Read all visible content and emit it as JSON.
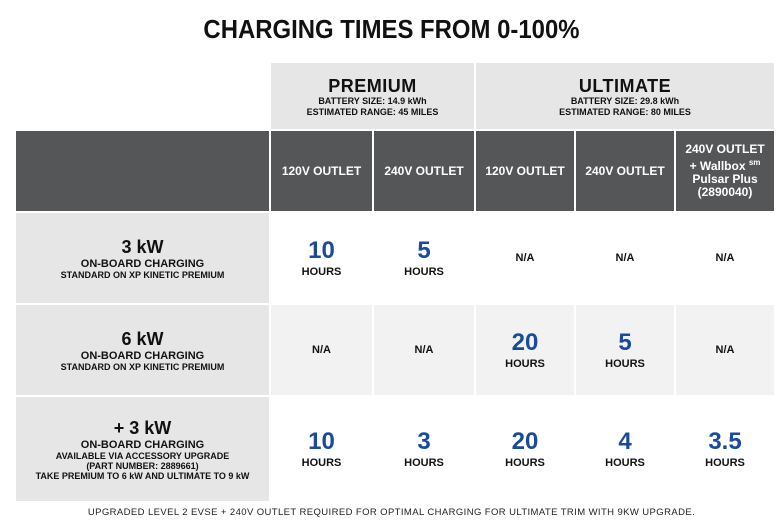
{
  "title": "CHARGING TIMES FROM 0-100%",
  "plans": [
    {
      "name": "PREMIUM",
      "battery": "BATTERY SIZE: 14.9 kWh",
      "range": "ESTIMATED RANGE: 45 MILES"
    },
    {
      "name": "ULTIMATE",
      "battery": "BATTERY SIZE: 29.8 kWh",
      "range": "ESTIMATED RANGE: 80 MILES"
    }
  ],
  "columns": [
    "120V OUTLET",
    "240V OUTLET",
    "120V OUTLET",
    "240V OUTLET",
    "240V OUTLET\n+ Wallbox sm\nPulsar Plus\n(2890040)"
  ],
  "rows": [
    {
      "kw": "3 kW",
      "sub1": "ON-BOARD CHARGING",
      "sub2": "STANDARD ON XP KINETIC PREMIUM",
      "cells": [
        {
          "num": "10",
          "unit": "HOURS"
        },
        {
          "num": "5",
          "unit": "HOURS"
        },
        {
          "num": "",
          "unit": "N/A"
        },
        {
          "num": "",
          "unit": "N/A"
        },
        {
          "num": "",
          "unit": "N/A"
        }
      ]
    },
    {
      "kw": "6 kW",
      "sub1": "ON-BOARD CHARGING",
      "sub2": "STANDARD ON XP KINETIC PREMIUM",
      "cells": [
        {
          "num": "",
          "unit": "N/A"
        },
        {
          "num": "",
          "unit": "N/A"
        },
        {
          "num": "20",
          "unit": "HOURS"
        },
        {
          "num": "5",
          "unit": "HOURS"
        },
        {
          "num": "",
          "unit": "N/A"
        }
      ]
    },
    {
      "kw": "+ 3 kW",
      "sub1": "ON-BOARD CHARGING",
      "sub2": "AVAILABLE VIA ACCESSORY UPGRADE\n(PART NUMBER: 2889661)\nTAKE PREMIUM TO 6 kW AND ULTIMATE TO 9 kW",
      "cells": [
        {
          "num": "10",
          "unit": "HOURS"
        },
        {
          "num": "3",
          "unit": "HOURS"
        },
        {
          "num": "20",
          "unit": "HOURS"
        },
        {
          "num": "4",
          "unit": "HOURS"
        },
        {
          "num": "3.5",
          "unit": "HOURS"
        }
      ]
    }
  ],
  "footnote": "UPGRADED LEVEL 2 EVSE + 240V OUTLET REQUIRED FOR OPTIMAL CHARGING FOR ULTIMATE TRIM WITH 9KW UPGRADE.",
  "colors": {
    "number": "#1a4a9a",
    "header_dark": "#555657",
    "header_light": "#e6e6e6"
  }
}
